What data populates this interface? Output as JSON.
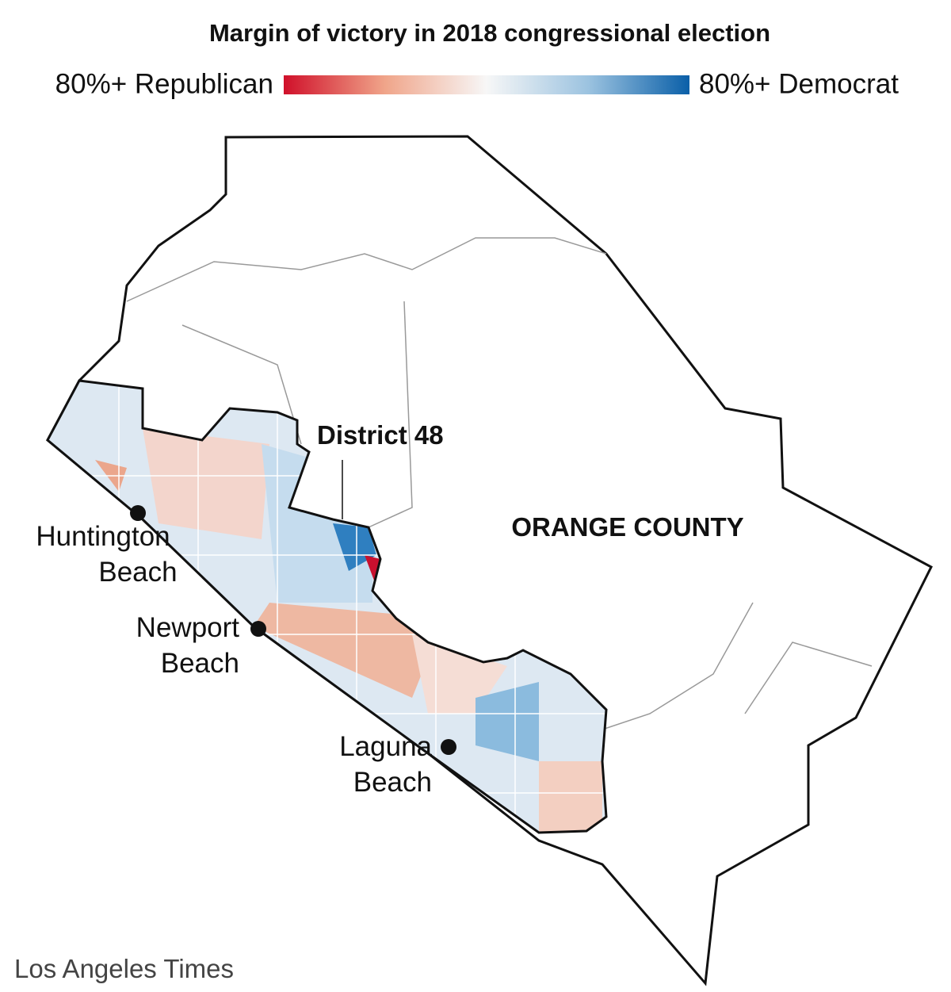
{
  "title": "Margin of victory in 2018 congressional election",
  "legend": {
    "left": "80%+ Republican",
    "right": "80%+ Democrat"
  },
  "labels": {
    "district": "District 48",
    "county": "ORANGE COUNTY",
    "cities": [
      {
        "lines": [
          "Huntington",
          "Beach"
        ]
      },
      {
        "lines": [
          "Newport",
          "Beach"
        ]
      },
      {
        "lines": [
          "Laguna",
          "Beach"
        ]
      }
    ]
  },
  "credit": "Los Angeles Times"
}
